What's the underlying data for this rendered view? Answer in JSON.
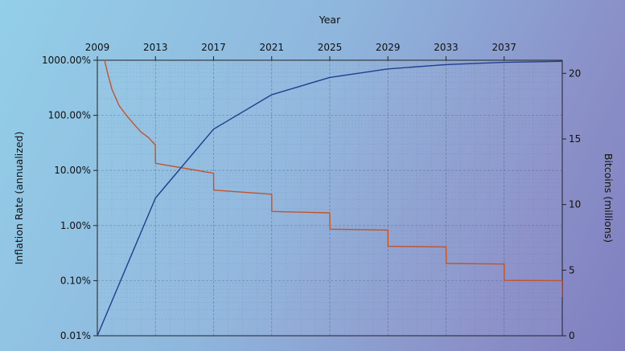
{
  "chart_data": {
    "type": "line",
    "title": "",
    "xlabel": "Year",
    "ylabel_left": "Inflation Rate (annualized)",
    "ylabel_right": "Bitcoins (millions)",
    "x_ticks": [
      2009,
      2013,
      2017,
      2021,
      2025,
      2029,
      2033,
      2037
    ],
    "xlim": [
      2009,
      2041
    ],
    "y_left": {
      "scale": "log",
      "lim": [
        0.01,
        1000
      ],
      "ticks": [
        0.01,
        0.1,
        1,
        10,
        100,
        1000
      ],
      "tick_labels": [
        "0.01%",
        "0.10%",
        "1.00%",
        "10.00%",
        "100.00%",
        "1000.00%"
      ]
    },
    "y_right": {
      "scale": "linear",
      "lim": [
        0,
        21
      ],
      "ticks": [
        0,
        5,
        10,
        15,
        20
      ],
      "tick_labels": [
        "0",
        "5",
        "10",
        "15",
        "20"
      ]
    },
    "grid": true,
    "series": [
      {
        "axis": "left",
        "color": "#c0552a",
        "points": [
          [
            2009.5,
            1000
          ],
          [
            2009.7,
            600
          ],
          [
            2010.0,
            300
          ],
          [
            2010.5,
            150
          ],
          [
            2011.0,
            100
          ],
          [
            2011.5,
            70
          ],
          [
            2012.0,
            50
          ],
          [
            2012.5,
            40
          ],
          [
            2012.99,
            29
          ],
          [
            2013.0,
            13.5
          ],
          [
            2017.0,
            8.9
          ],
          [
            2017.01,
            4.4
          ],
          [
            2021.0,
            3.7
          ],
          [
            2021.01,
            1.8
          ],
          [
            2025.0,
            1.7
          ],
          [
            2025.01,
            0.86
          ],
          [
            2029.0,
            0.83
          ],
          [
            2029.01,
            0.42
          ],
          [
            2033.0,
            0.41
          ],
          [
            2033.01,
            0.205
          ],
          [
            2037.0,
            0.2
          ],
          [
            2037.01,
            0.101
          ],
          [
            2041.0,
            0.1
          ],
          [
            2041.01,
            0.05
          ]
        ]
      },
      {
        "axis": "right",
        "color": "#1f3f8f",
        "points": [
          [
            2009,
            0
          ],
          [
            2013,
            10.5
          ],
          [
            2017,
            15.75
          ],
          [
            2021,
            18.375
          ],
          [
            2025,
            19.69
          ],
          [
            2029,
            20.34
          ],
          [
            2033,
            20.67
          ],
          [
            2037,
            20.84
          ],
          [
            2041,
            20.92
          ]
        ]
      }
    ]
  }
}
